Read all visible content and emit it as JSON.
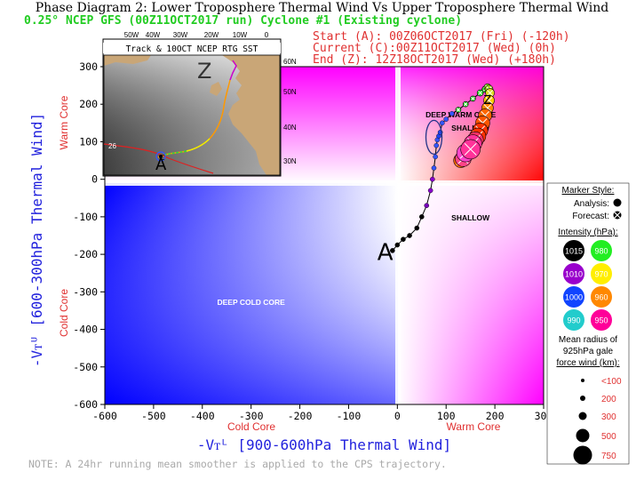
{
  "header": {
    "title": "Phase Diagram 2: Lower Troposphere Thermal Wind Vs Upper Troposphere Thermal Wind",
    "subtitle": "0.25° NCEP GFS (00Z11OCT2017 run) Cyclone #1 (Existing cyclone)",
    "start": "Start (A):   00Z06OCT2017 (Fri)   (-120h)",
    "current": "Current (C):00Z11OCT2017 (Wed)   (0h)",
    "end": "End (Z):    12Z18OCT2017 (Wed)   (+180h)"
  },
  "note": "NOTE:  A 24hr running mean smoother is applied to the CPS trajectory.",
  "colors": {
    "warm": "#ff0000",
    "cold": "#0000ff",
    "magenta": "#ff00ff",
    "red_text": "#e03030",
    "blue_text": "#2222dd",
    "green_text": "#22cc22"
  },
  "chart_data": {
    "type": "scatter",
    "xlabel": "-Vᴛᴸ [900-600hPa Thermal Wind]",
    "ylabel": "-Vᴛᵁ [600-300hPa Thermal Wind]",
    "xlim": [
      -600,
      300
    ],
    "ylim": [
      -600,
      300
    ],
    "xticks": [
      -600,
      -500,
      -400,
      -300,
      -200,
      -100,
      0,
      100,
      200,
      300
    ],
    "yticks": [
      -600,
      -500,
      -400,
      -300,
      -200,
      -100,
      0,
      100,
      200,
      300
    ],
    "x_side_labels": {
      "left": "Cold Core",
      "right": "Warm Core"
    },
    "y_side_labels": {
      "bottom": "Cold Core",
      "top": "Warm Core"
    },
    "region_labels": [
      {
        "text": "DEEP WARM CORE",
        "x": 130,
        "y": 165
      },
      {
        "text": "SHALLOW",
        "x": 150,
        "y": 130
      },
      {
        "text": "SHALLOW",
        "x": 150,
        "y": -110
      },
      {
        "text": "DEEP COLD CORE",
        "x": -300,
        "y": -335
      }
    ],
    "point_labels": [
      {
        "text": "A",
        "x": -25,
        "y": -215
      },
      {
        "text": "C",
        "x": 75,
        "y": 110
      },
      {
        "text": "Z",
        "x": 185,
        "y": 200
      }
    ],
    "analysis_track": {
      "x": [
        -10,
        0,
        12,
        25,
        40,
        50,
        60,
        68,
        72,
        75,
        78,
        80,
        82,
        85,
        88,
        92,
        100,
        112,
        125
      ],
      "y": [
        -190,
        -175,
        -160,
        -150,
        -130,
        -100,
        -70,
        -30,
        0,
        30,
        60,
        90,
        105,
        115,
        125,
        150,
        160,
        175,
        185
      ],
      "color": "#000000",
      "dot_colors": [
        "#000000",
        "#000000",
        "#000000",
        "#000000",
        "#000000",
        "#000000",
        "#7700bb",
        "#8800cc",
        "#8800cc",
        "#3355ff",
        "#3355ff",
        "#3355ff",
        "#3355ff",
        "#2244ee",
        "#2244ee",
        "#3355ff",
        "#3355ff",
        "#3355ff",
        "#3355ff"
      ]
    },
    "forecast_track": {
      "x": [
        125,
        140,
        155,
        170,
        180,
        185,
        188,
        190,
        188,
        185,
        180,
        175,
        170,
        165,
        160,
        155,
        150,
        140,
        135,
        130
      ],
      "y": [
        185,
        200,
        215,
        230,
        240,
        245,
        240,
        230,
        210,
        190,
        170,
        150,
        130,
        115,
        105,
        95,
        80,
        70,
        55,
        50
      ],
      "color": "#000000",
      "marker_colors": [
        "#22dd22",
        "#22dd22",
        "#22dd22",
        "#22dd22",
        "#22dd22",
        "#88dd22",
        "#aadd22",
        "#dddd22",
        "#ffcc00",
        "#ff8800",
        "#ff6600",
        "#ff5500",
        "#ff3300",
        "#ff3300",
        "#ff3366",
        "#ff3399",
        "#ff3399",
        "#ff44cc",
        "#ff4488",
        "#ff6600"
      ],
      "marker_sizes": [
        6,
        6,
        6,
        7,
        7,
        8,
        9,
        10,
        12,
        13,
        15,
        16,
        17,
        18,
        18,
        20,
        22,
        20,
        18,
        16
      ]
    }
  },
  "legend": {
    "marker_style": {
      "title": "Marker Style:",
      "analysis": "Analysis:",
      "forecast": "Forecast:"
    },
    "intensity": {
      "title": "Intensity (hPa):",
      "items": [
        {
          "label": "1015",
          "color": "#000000",
          "text_color": "#ffffff"
        },
        {
          "label": "980",
          "color": "#22ee22",
          "text_color": "#ffffff"
        },
        {
          "label": "1010",
          "color": "#9900cc",
          "text_color": "#ffffff"
        },
        {
          "label": "970",
          "color": "#ffee00",
          "text_color": "#ffffff"
        },
        {
          "label": "1000",
          "color": "#1144ff",
          "text_color": "#ffffff"
        },
        {
          "label": "960",
          "color": "#ff8800",
          "text_color": "#ffffff"
        },
        {
          "label": "990",
          "color": "#22cccc",
          "text_color": "#ffffff"
        },
        {
          "label": "950",
          "color": "#ff0099",
          "text_color": "#ffffff"
        }
      ]
    },
    "radius": {
      "title_lines": [
        "Mean radius of",
        "925hPa gale",
        "force wind (km):"
      ],
      "items": [
        "<100",
        "200",
        "300",
        "500",
        "750"
      ]
    }
  },
  "inset": {
    "title": "Track & 10OCT NCEP RTG SST",
    "lon_labels": [
      "50W",
      "40W",
      "30W",
      "20W",
      "10W",
      "0"
    ],
    "lat_labels": [
      "60N",
      "50N",
      "40N",
      "30N"
    ],
    "z_label": "Z",
    "c_label": "C",
    "a_label": "A",
    "iso_label": "26"
  }
}
